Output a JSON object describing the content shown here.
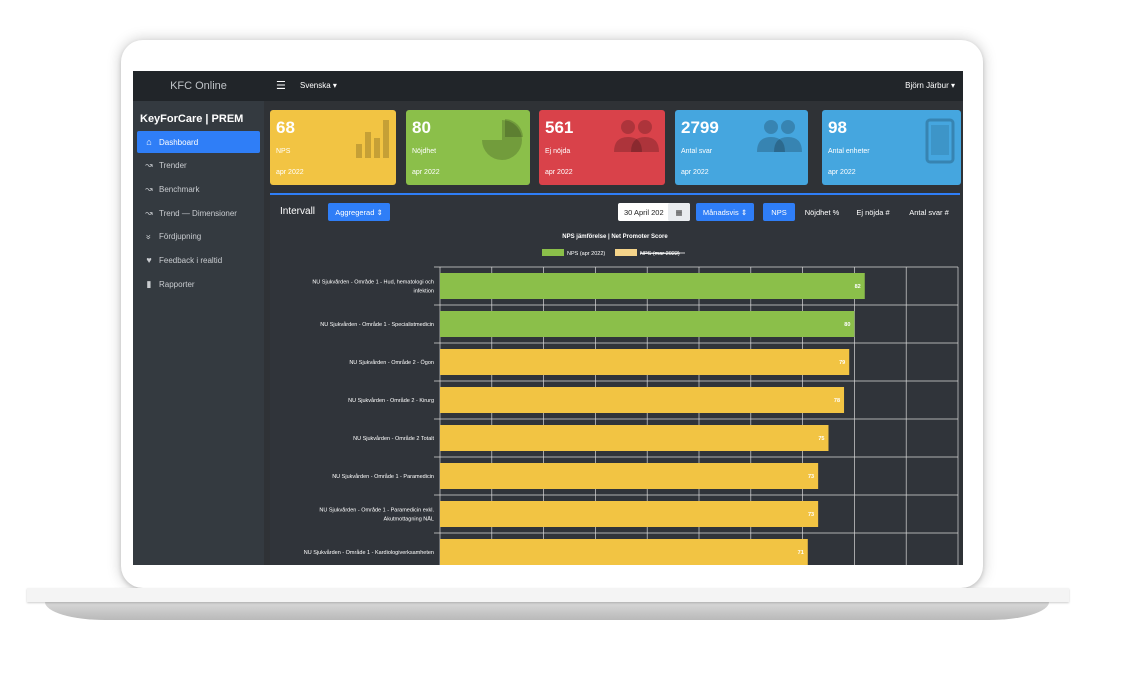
{
  "sidebar": {
    "brand": "KFC Online",
    "app_title": "KeyForCare | PREM",
    "items": [
      {
        "label": "Dashboard",
        "icon": "home-icon",
        "active": true
      },
      {
        "label": "Trender",
        "icon": "line-chart-icon"
      },
      {
        "label": "Benchmark",
        "icon": "line-chart-icon"
      },
      {
        "label": "Trend — Dimensioner",
        "icon": "line-chart-icon"
      },
      {
        "label": "Fördjupning",
        "icon": "double-chevron-down-icon"
      },
      {
        "label": "Feedback i realtid",
        "icon": "heartbeat-icon"
      },
      {
        "label": "Rapporter",
        "icon": "file-icon"
      }
    ]
  },
  "topbar": {
    "menu_icon": "hamburger-icon",
    "language": "Svenska",
    "user": "Björn Järbur"
  },
  "cards": [
    {
      "value": "68",
      "label": "NPS",
      "period": "apr 2022",
      "color": "#f2c443",
      "icon": "bar-chart-icon"
    },
    {
      "value": "80",
      "label": "Nöjdhet",
      "period": "apr 2022",
      "color": "#8bbf4a",
      "icon": "pie-chart-icon"
    },
    {
      "value": "561",
      "label": "Ej nöjda",
      "period": "apr 2022",
      "color": "#d9424a",
      "icon": "users-icon"
    },
    {
      "value": "2799",
      "label": "Antal svar",
      "period": "apr 2022",
      "color": "#45a6df",
      "icon": "users-icon"
    },
    {
      "value": "98",
      "label": "Antal enheter",
      "period": "apr 2022",
      "color": "#45a6df",
      "icon": "tablet-icon"
    }
  ],
  "controls": {
    "interval_label": "Intervall",
    "aggregation": "Aggregerad",
    "date": "30 April 202",
    "frequency": "Månadsvis",
    "tabs": [
      "NPS",
      "Nöjdhet %",
      "Ej nöjda #",
      "Antal svar #"
    ],
    "active_tab": "NPS"
  },
  "chart_data": {
    "type": "bar",
    "orientation": "horizontal",
    "title": "NPS jämförelse | Net Promoter Score",
    "legend": [
      {
        "name": "NPS (apr 2022)",
        "color": "#8bbf4a",
        "struck": false
      },
      {
        "name": "NPS (mar 2022)",
        "color": "#f5d48a",
        "struck": true
      }
    ],
    "categories": [
      "NU Sjukvården - Område 1 - Hud, hematologi och infektion",
      "NU Sjukvården - Område 1 - Specialistmedicin",
      "NU Sjukvården - Område 2 - Ögon",
      "NU Sjukvården - Område 2 - Kirurg",
      "NU Sjukvården - Område 2 Totalt",
      "NU Sjukvården - Område 1 - Paramedicin",
      "NU Sjukvården - Område 1 - Paramedicin exkl. Akutmottagning NÄL",
      "NU Sjukvården - Område 1 - Kardiologiverksamheten"
    ],
    "category_lines": [
      [
        "NU Sjukvården - Område 1 - Hud, hematologi och",
        "infektion"
      ],
      [
        "NU Sjukvården - Område 1 - Specialistmedicin"
      ],
      [
        "NU Sjukvården - Område 2 - Ögon"
      ],
      [
        "NU Sjukvården - Område 2 - Kirurg"
      ],
      [
        "NU Sjukvården - Område 2 Totalt"
      ],
      [
        "NU Sjukvården - Område 1 - Paramedicin"
      ],
      [
        "NU Sjukvården - Område 1 - Paramedicin exkl.",
        "Akutmottagning NÄL"
      ],
      [
        "NU Sjukvården - Område 1 - Kardiologiverksamheten"
      ]
    ],
    "values": [
      82,
      80,
      79,
      78,
      75,
      73,
      73,
      71
    ],
    "bar_colors": [
      "#8bbf4a",
      "#8bbf4a",
      "#f2c443",
      "#f2c443",
      "#f2c443",
      "#f2c443",
      "#f2c443",
      "#f2c443"
    ],
    "xlim": [
      0,
      100
    ],
    "grid": true
  }
}
